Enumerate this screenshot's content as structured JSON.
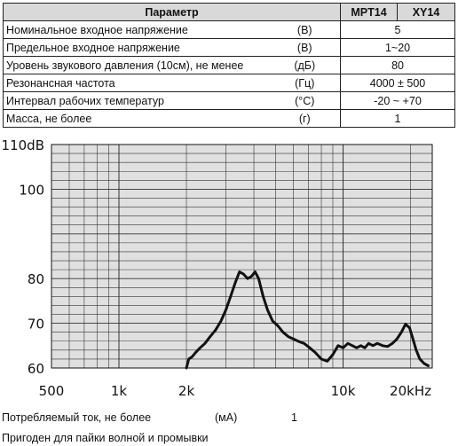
{
  "table": {
    "header": {
      "param": "Параметр",
      "col1": "MPT14",
      "col2": "XY14"
    },
    "rows": [
      {
        "param": "Номинальное входное напряжение",
        "unit": "(В)",
        "value": "5"
      },
      {
        "param": "Предельное входное напряжение",
        "unit": "(В)",
        "value": "1~20"
      },
      {
        "param": "Уровень звукового давления (10см), не менее",
        "unit": "(дБ)",
        "value": "80"
      },
      {
        "param": "Резонансная частота",
        "unit": "(Гц)",
        "value": "4000 ± 500"
      },
      {
        "param": "Интервал рабочих температур",
        "unit": "(°C)",
        "value": "-20 ~ +70"
      },
      {
        "param": "Масса, не более",
        "unit": "(г)",
        "value": "1"
      }
    ]
  },
  "chart_data": {
    "type": "line",
    "x_scale": "log",
    "xlim": [
      500,
      25000
    ],
    "ylim": [
      60,
      110
    ],
    "y_ticks": [
      "110dB",
      "100",
      "80",
      "70",
      "60"
    ],
    "y_tick_values": [
      110,
      100,
      80,
      70,
      60
    ],
    "x_ticks": [
      "500",
      "1k",
      "2k",
      "10k",
      "20kHz"
    ],
    "x_tick_values": [
      500,
      1000,
      2000,
      10000,
      20000
    ],
    "grid": true,
    "series": [
      {
        "color": "#111111",
        "x": [
          2000,
          2050,
          2120,
          2200,
          2300,
          2420,
          2550,
          2700,
          2850,
          3000,
          3150,
          3300,
          3450,
          3600,
          3750,
          3900,
          4050,
          4200,
          4400,
          4600,
          4850,
          5100,
          5400,
          5700,
          6000,
          6300,
          6700,
          7100,
          7500,
          8000,
          8500,
          9000,
          9500,
          10000,
          10500,
          11000,
          11500,
          12000,
          12500,
          13000,
          13600,
          14200,
          15000,
          15800,
          16600,
          17400,
          18200,
          19000,
          19800,
          20500,
          21200,
          22000,
          23000,
          24000
        ],
        "y": [
          60,
          62,
          62.5,
          63.5,
          64.5,
          65.5,
          67,
          68.5,
          70.5,
          73,
          76,
          79,
          81.5,
          81,
          80,
          80.5,
          81.5,
          80,
          76,
          73,
          70.5,
          69.5,
          68,
          67,
          66.5,
          66,
          65.5,
          64.5,
          63.5,
          62,
          61.5,
          63,
          65,
          64.5,
          65.5,
          65,
          64.5,
          65,
          64.5,
          65.5,
          65,
          65.5,
          65,
          64.8,
          65.5,
          66.5,
          68,
          69.8,
          69,
          66.5,
          64,
          62,
          61,
          60.5
        ]
      }
    ]
  },
  "notes": {
    "current_label": "Потребляемый ток, не более",
    "current_unit": "(мА)",
    "current_value": "1",
    "solder_note": "Пригоден для пайки волной и промывки"
  }
}
